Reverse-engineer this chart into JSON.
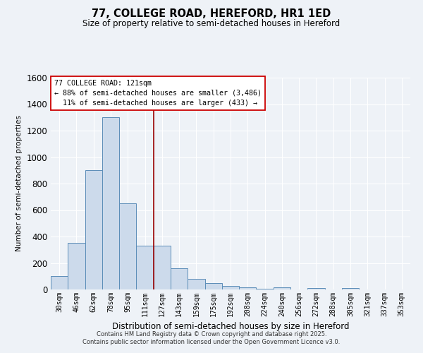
{
  "title1": "77, COLLEGE ROAD, HEREFORD, HR1 1ED",
  "title2": "Size of property relative to semi-detached houses in Hereford",
  "xlabel": "Distribution of semi-detached houses by size in Hereford",
  "ylabel": "Number of semi-detached properties",
  "categories": [
    "30sqm",
    "46sqm",
    "62sqm",
    "78sqm",
    "95sqm",
    "111sqm",
    "127sqm",
    "143sqm",
    "159sqm",
    "175sqm",
    "192sqm",
    "208sqm",
    "224sqm",
    "240sqm",
    "256sqm",
    "272sqm",
    "288sqm",
    "305sqm",
    "321sqm",
    "337sqm",
    "353sqm"
  ],
  "values": [
    100,
    350,
    900,
    1300,
    650,
    330,
    330,
    160,
    80,
    50,
    25,
    15,
    5,
    15,
    0,
    10,
    0,
    10,
    0,
    0,
    0
  ],
  "bar_color": "#ccdaeb",
  "bar_edge_color": "#5b8db8",
  "property_size": "121sqm",
  "pct_smaller": 88,
  "n_smaller": 3486,
  "pct_larger": 11,
  "n_larger": 433,
  "annotation_box_color": "#ffffff",
  "annotation_box_edge_color": "#cc0000",
  "vline_color": "#990000",
  "vline_x": 5.5,
  "ylim": [
    0,
    1600
  ],
  "yticks": [
    0,
    200,
    400,
    600,
    800,
    1000,
    1200,
    1400,
    1600
  ],
  "background_color": "#eef2f7",
  "grid_color": "#ffffff",
  "footer1": "Contains HM Land Registry data © Crown copyright and database right 2025.",
  "footer2": "Contains public sector information licensed under the Open Government Licence v3.0."
}
